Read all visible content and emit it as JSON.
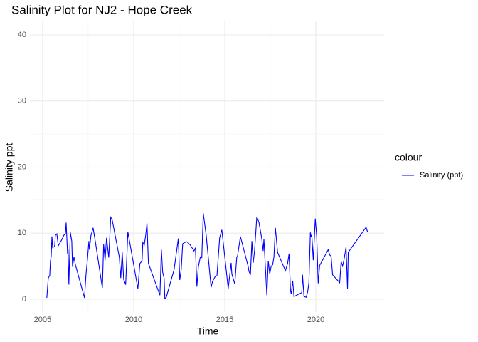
{
  "chart_data": {
    "type": "line",
    "title": "Salinity Plot for NJ2 - Hope Creek",
    "x_label": "Time",
    "y_label": "Salinity ppt",
    "legend_title": "colour",
    "legend_position": "right",
    "grid": true,
    "xlim": [
      2004.3,
      2023.75
    ],
    "ylim": [
      -1.95,
      42.05
    ],
    "xticks": [
      2005,
      2010,
      2015,
      2020
    ],
    "yticks": [
      0,
      10,
      20,
      30,
      40
    ],
    "x": [
      2005.23,
      2005.31,
      2005.39,
      2005.43,
      2005.47,
      2005.51,
      2005.55,
      2005.66,
      2005.7,
      2005.78,
      2005.86,
      2006.01,
      2006.17,
      2006.25,
      2006.29,
      2006.37,
      2006.4,
      2006.44,
      2006.52,
      2006.6,
      2006.64,
      2006.72,
      2006.8,
      2007.3,
      2007.38,
      2007.46,
      2007.54,
      2007.57,
      2007.65,
      2007.77,
      2007.89,
      2008.28,
      2008.35,
      2008.43,
      2008.51,
      2008.63,
      2008.74,
      2008.82,
      2009.21,
      2009.29,
      2009.37,
      2009.45,
      2009.56,
      2009.68,
      2010.23,
      2010.34,
      2010.46,
      2010.5,
      2010.58,
      2010.66,
      2010.73,
      2010.81,
      2011.44,
      2011.52,
      2011.59,
      2011.67,
      2011.71,
      2011.79,
      2012.22,
      2012.45,
      2012.53,
      2012.61,
      2012.69,
      2012.8,
      2012.92,
      2013.11,
      2013.31,
      2013.39,
      2013.47,
      2013.55,
      2013.66,
      2013.74,
      2013.82,
      2013.98,
      2014.25,
      2014.33,
      2014.49,
      2014.57,
      2014.72,
      2014.84,
      2015.19,
      2015.35,
      2015.39,
      2015.55,
      2015.66,
      2015.7,
      2015.86,
      2016.29,
      2016.33,
      2016.41,
      2016.49,
      2016.56,
      2016.64,
      2016.76,
      2016.88,
      2017.03,
      2017.11,
      2017.15,
      2017.31,
      2017.39,
      2017.47,
      2017.55,
      2017.63,
      2017.7,
      2017.78,
      2017.9,
      2018.33,
      2018.45,
      2018.53,
      2018.61,
      2018.65,
      2018.73,
      2018.8,
      2019.23,
      2019.27,
      2019.35,
      2019.47,
      2019.55,
      2019.62,
      2019.7,
      2019.74,
      2019.78,
      2019.86,
      2019.97,
      2020.05,
      2020.13,
      2020.21,
      2020.68,
      2020.76,
      2020.84,
      2020.92,
      2021.31,
      2021.39,
      2021.47,
      2021.55,
      2021.66,
      2021.74,
      2021.78,
      2022.76,
      2022.84
    ],
    "series": [
      {
        "name": "Salinity (ppt)",
        "color": "#0000ff",
        "values": [
          0.2,
          3.2,
          3.6,
          5.8,
          6.5,
          9.5,
          7.8,
          8.0,
          9.7,
          9.9,
          8.1,
          8.8,
          9.7,
          9.9,
          11.6,
          6.8,
          7.5,
          2.2,
          10.1,
          8.8,
          4.9,
          6.4,
          5.2,
          0.2,
          3.7,
          6.0,
          8.8,
          7.5,
          9.6,
          10.8,
          8.8,
          1.7,
          8.3,
          5.9,
          9.3,
          6.3,
          12.4,
          12.0,
          6.4,
          3.2,
          7.1,
          3.0,
          2.2,
          10.2,
          1.6,
          5.4,
          5.8,
          8.6,
          8.2,
          9.7,
          11.5,
          5.4,
          0.6,
          7.5,
          4.1,
          3.2,
          0.1,
          0.3,
          4.5,
          9.2,
          2.9,
          4.5,
          8.4,
          8.6,
          8.7,
          8.2,
          7.3,
          7.8,
          1.9,
          4.9,
          6.4,
          6.3,
          13.0,
          9.7,
          1.8,
          2.7,
          3.5,
          3.5,
          9.3,
          10.5,
          1.6,
          5.5,
          3.8,
          2.3,
          6.4,
          6.5,
          9.5,
          4.9,
          4.2,
          3.7,
          8.8,
          5.5,
          7.4,
          12.5,
          11.6,
          9.2,
          7.3,
          9.1,
          0.6,
          5.8,
          3.8,
          5.0,
          5.2,
          6.4,
          10.8,
          7.1,
          4.3,
          5.4,
          6.9,
          1.3,
          0.8,
          2.8,
          0.4,
          1.0,
          3.7,
          0.4,
          0.3,
          1.1,
          2.5,
          10.1,
          9.5,
          9.7,
          5.9,
          12.2,
          9.5,
          2.4,
          5.1,
          7.5,
          6.7,
          6.5,
          3.7,
          2.5,
          5.7,
          5.0,
          6.0,
          7.9,
          1.6,
          7.1,
          10.9,
          10.2
        ]
      }
    ]
  }
}
